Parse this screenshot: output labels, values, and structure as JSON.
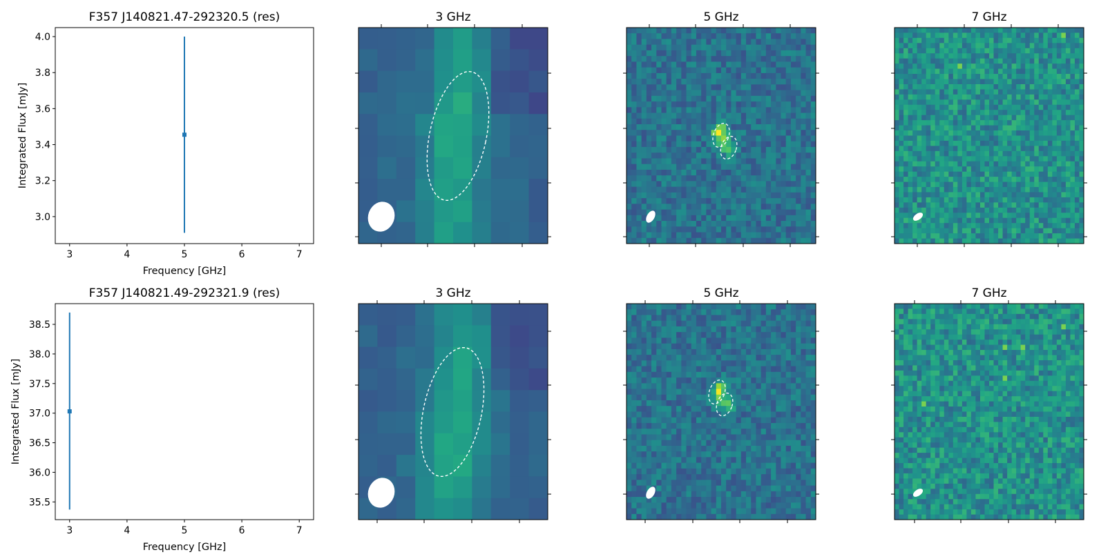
{
  "chart_data": [
    {
      "type": "scatter",
      "title": "F357 J140821.47-292320.5 (res)",
      "xlabel": "Frequency [GHz]",
      "ylabel": "Integrated Flux [mJy]",
      "xlim": [
        2.75,
        7.25
      ],
      "ylim": [
        2.85,
        4.05
      ],
      "xticks": [
        "3",
        "4",
        "5",
        "6",
        "7"
      ],
      "yticks": [
        "3.0",
        "3.2",
        "3.4",
        "3.6",
        "3.8",
        "4.0"
      ],
      "points": [
        {
          "x": 5,
          "y": 3.455,
          "y_err_low": 2.91,
          "y_err_high": 4.0
        }
      ],
      "color": "#1f77b4",
      "grid": false
    },
    {
      "type": "heatmap",
      "title": "3 GHz",
      "colormap": "viridis",
      "beam": "white ellipse lower-left",
      "source_contours": 1
    },
    {
      "type": "heatmap",
      "title": "5 GHz",
      "colormap": "viridis",
      "beam": "white ellipse lower-left",
      "source_contours": 2
    },
    {
      "type": "heatmap",
      "title": "7 GHz",
      "colormap": "viridis",
      "beam": "white ellipse lower-left",
      "source_contours": 0
    },
    {
      "type": "scatter",
      "title": "F357 J140821.49-292321.9 (res)",
      "xlabel": "Frequency [GHz]",
      "ylabel": "Integrated Flux [mJy]",
      "xlim": [
        2.75,
        7.25
      ],
      "ylim": [
        35.2,
        38.85
      ],
      "xticks": [
        "3",
        "4",
        "5",
        "6",
        "7"
      ],
      "yticks": [
        "35.5",
        "36.0",
        "36.5",
        "37.0",
        "37.5",
        "38.0",
        "38.5"
      ],
      "points": [
        {
          "x": 3,
          "y": 37.03,
          "y_err_low": 35.37,
          "y_err_high": 38.7
        }
      ],
      "color": "#1f77b4",
      "grid": false
    },
    {
      "type": "heatmap",
      "title": "3 GHz",
      "colormap": "viridis",
      "beam": "white ellipse lower-left",
      "source_contours": 1
    },
    {
      "type": "heatmap",
      "title": "5 GHz",
      "colormap": "viridis",
      "beam": "white ellipse lower-left",
      "source_contours": 2
    },
    {
      "type": "heatmap",
      "title": "7 GHz",
      "colormap": "viridis",
      "beam": "white ellipse lower-left",
      "source_contours": 0
    }
  ]
}
